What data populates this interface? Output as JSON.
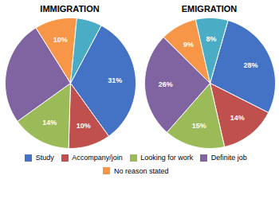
{
  "chart_data": [
    {
      "type": "pie",
      "title": "IMMIGRATION",
      "categories": [
        "Study",
        "Accompany/join",
        "Looking for work",
        "Definite job",
        "No reason stated",
        null
      ],
      "values": [
        31,
        10,
        14,
        25,
        10,
        6
      ],
      "value_labels": [
        "31%",
        "10%",
        "14%",
        null,
        "10%",
        null
      ],
      "colors": [
        "#4472C4",
        "#C0504D",
        "#9BBB59",
        "#8064A2",
        "#F79646",
        "#4BACC6"
      ],
      "data_labels": true,
      "legend": "bottom"
    },
    {
      "type": "pie",
      "title": "EMIGRATION",
      "categories": [
        "Study",
        "Accompany/join",
        "Looking for work",
        "Definite job",
        "No reason stated",
        null
      ],
      "values": [
        28,
        14,
        15,
        26,
        9,
        8
      ],
      "value_labels": [
        "28%",
        "14%",
        "15%",
        "26%",
        "9%",
        "8%"
      ],
      "colors": [
        "#4472C4",
        "#C0504D",
        "#9BBB59",
        "#8064A2",
        "#F79646",
        "#4BACC6"
      ],
      "data_labels": true,
      "legend": "bottom"
    }
  ]
}
